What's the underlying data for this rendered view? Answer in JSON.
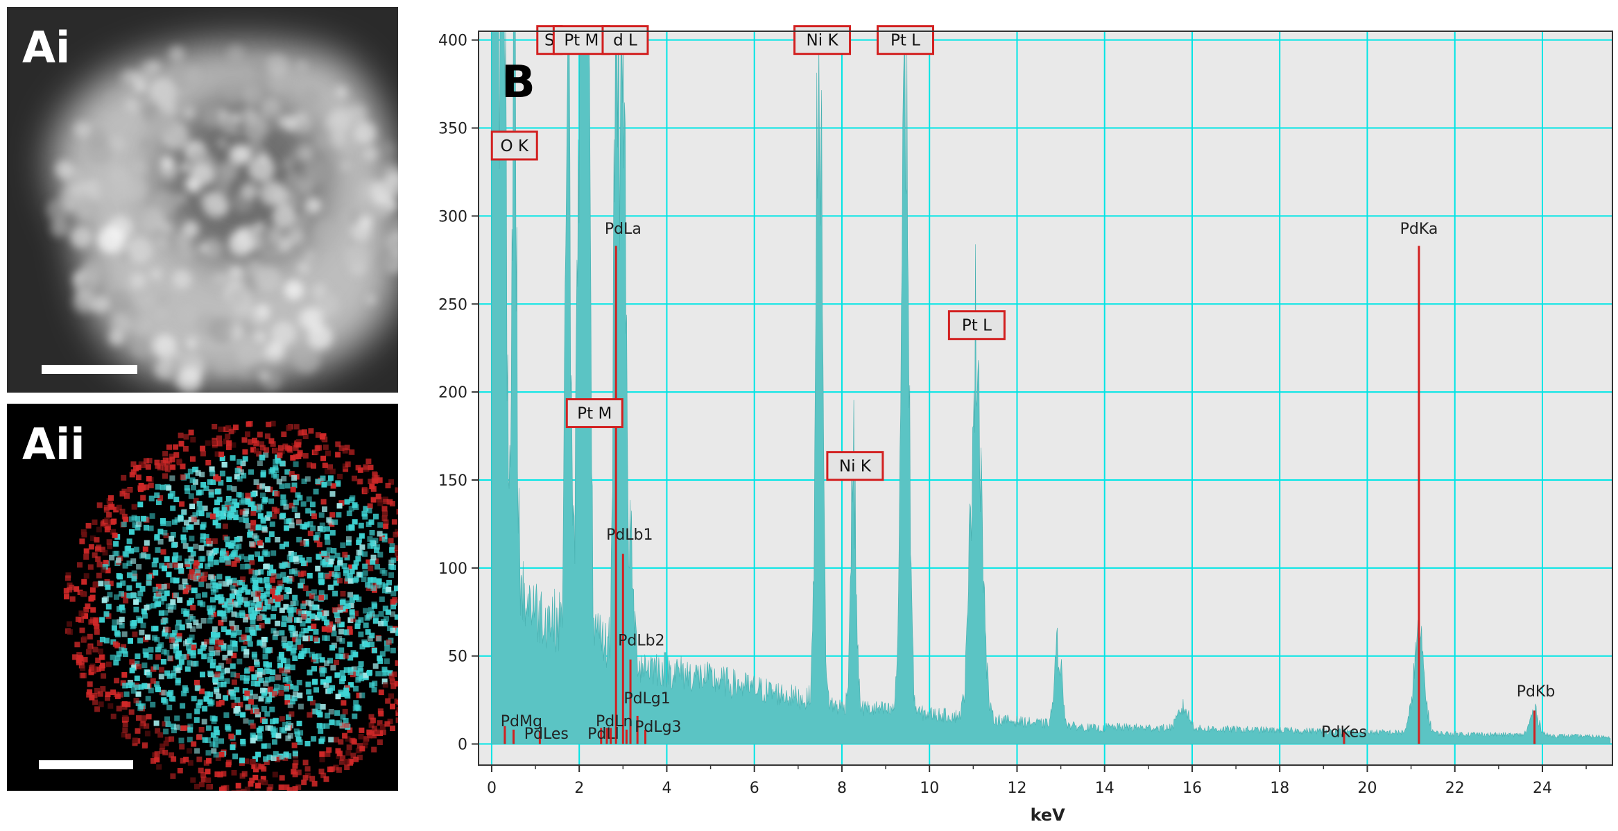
{
  "panels": {
    "ai": {
      "letter": "Ai"
    },
    "aii": {
      "letter": "Aii"
    },
    "b": {
      "letter": "B"
    }
  },
  "colors": {
    "spectrum_fill": "#5bc4c4",
    "grid": "#00e5e5",
    "plot_bg": "#e9e9e9",
    "marker": "#d22020",
    "label_box_fill": "#e4e4e4",
    "label_box_border": "#d22020",
    "map_cyan": "#3fd6d6",
    "map_red": "#d02828"
  },
  "chart_data": {
    "type": "area",
    "xlabel": "keV",
    "ylabel": "",
    "xlim": [
      -0.3,
      25.6
    ],
    "ylim": [
      -12,
      405
    ],
    "x_ticks": [
      0,
      2,
      4,
      6,
      8,
      10,
      12,
      14,
      16,
      18,
      20,
      22,
      24
    ],
    "y_ticks": [
      0,
      50,
      100,
      150,
      200,
      250,
      300,
      350,
      400
    ],
    "grid": true,
    "peaks": [
      {
        "center": 0.1,
        "height": 405,
        "width": 0.1
      },
      {
        "center": 0.28,
        "height": 405,
        "width": 0.05
      },
      {
        "center": 0.52,
        "height": 325,
        "width": 0.05
      },
      {
        "center": 1.74,
        "height": 405,
        "width": 0.05
      },
      {
        "center": 2.05,
        "height": 405,
        "width": 0.08
      },
      {
        "center": 2.18,
        "height": 405,
        "width": 0.06
      },
      {
        "center": 2.84,
        "height": 405,
        "width": 0.05
      },
      {
        "center": 2.99,
        "height": 405,
        "width": 0.06
      },
      {
        "center": 3.17,
        "height": 60,
        "width": 0.07
      },
      {
        "center": 7.48,
        "height": 400,
        "width": 0.07
      },
      {
        "center": 8.26,
        "height": 145,
        "width": 0.06
      },
      {
        "center": 9.44,
        "height": 400,
        "width": 0.08
      },
      {
        "center": 11.07,
        "height": 225,
        "width": 0.12
      },
      {
        "center": 12.94,
        "height": 46,
        "width": 0.08
      },
      {
        "center": 15.8,
        "height": 12,
        "width": 0.12
      },
      {
        "center": 21.18,
        "height": 55,
        "width": 0.12
      },
      {
        "center": 23.82,
        "height": 14,
        "width": 0.1
      }
    ],
    "box_labels": [
      {
        "text": "S",
        "x": 1.32,
        "y": 400
      },
      {
        "text": "Pt M",
        "x": 2.05,
        "y": 400
      },
      {
        "text": "d L",
        "x": 3.05,
        "y": 400
      },
      {
        "text": "Ni K",
        "x": 7.55,
        "y": 400
      },
      {
        "text": "Pt L",
        "x": 9.45,
        "y": 400
      },
      {
        "text": "O K",
        "x": 0.52,
        "y": 340
      },
      {
        "text": "Pt L",
        "x": 11.08,
        "y": 238
      },
      {
        "text": "Pt M",
        "x": 2.35,
        "y": 188
      },
      {
        "text": "Ni K",
        "x": 8.3,
        "y": 158
      }
    ],
    "markers": [
      {
        "label": "PdLa",
        "x": 2.84,
        "height": 283,
        "label_x": 3.0,
        "label_y": 290
      },
      {
        "label": "PdKa",
        "x": 21.18,
        "height": 283,
        "label_x": 21.18,
        "label_y": 290
      },
      {
        "label": "PdLb1",
        "x": 3.0,
        "height": 108,
        "label_x": 3.15,
        "label_y": 116
      },
      {
        "label": "PdLb2",
        "x": 3.17,
        "height": 48,
        "label_x": 3.42,
        "label_y": 56
      },
      {
        "label": "PdLg1",
        "x": 3.33,
        "height": 16,
        "label_x": 3.55,
        "label_y": 23
      },
      {
        "label": "PdLg3",
        "x": 3.51,
        "height": 5,
        "label_x": 3.8,
        "label_y": 7
      },
      {
        "label": "PdKb",
        "x": 23.82,
        "height": 19,
        "label_x": 23.85,
        "label_y": 27
      },
      {
        "label": "PdKes",
        "x": 19.47,
        "height": 5,
        "label_x": 19.47,
        "label_y": 4
      },
      {
        "label": "PdMg",
        "x": 0.3,
        "height": 7,
        "label_x": 0.68,
        "label_y": 10
      },
      {
        "label": "PdLes",
        "x": 1.1,
        "height": 4,
        "label_x": 1.25,
        "label_y": 3
      },
      {
        "label": "PdLl",
        "x": 2.5,
        "height": 6,
        "label_x": 2.55,
        "label_y": 3
      },
      {
        "label": "PdLn",
        "x": 2.72,
        "height": 6,
        "label_x": 2.8,
        "label_y": 10
      },
      {
        "label": "",
        "x": 0.5,
        "height": 5,
        "label_x": 0.5,
        "label_y": 0
      },
      {
        "label": "",
        "x": 2.63,
        "height": 6,
        "label_x": 2.63,
        "label_y": 0
      },
      {
        "label": "",
        "x": 3.08,
        "height": 5,
        "label_x": 3.08,
        "label_y": 0
      }
    ]
  }
}
